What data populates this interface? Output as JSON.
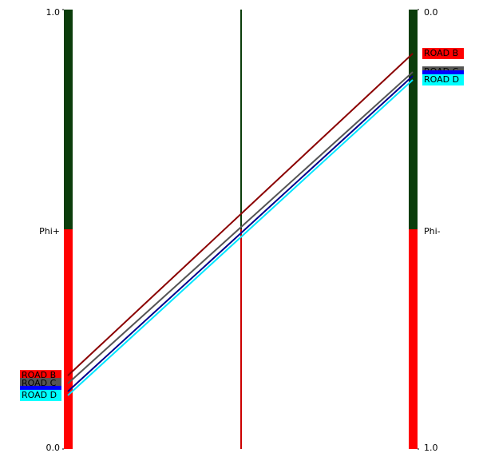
{
  "chart_data": {
    "type": "parallel",
    "left_axis": {
      "label": "Phi+",
      "ylim": [
        0,
        1
      ],
      "reversed": false,
      "ticks": [
        {
          "value": 0,
          "label": "0.0"
        },
        {
          "value": 1,
          "label": "1.0"
        }
      ]
    },
    "right_axis": {
      "label": "Phi-",
      "ylim": [
        0,
        1
      ],
      "reversed": true,
      "ticks": [
        {
          "value": 0,
          "label": "0.0"
        },
        {
          "value": 1,
          "label": "1.0"
        }
      ]
    },
    "series": [
      {
        "name": "ROAD B",
        "color": "#ff0000",
        "line_color": "#8b0000",
        "phi_plus": 0.167,
        "phi_minus": 0.1
      },
      {
        "name": "ROAD C",
        "color": "#555555",
        "line_color": "#555555",
        "phi_plus": 0.149,
        "phi_minus": 0.142
      },
      {
        "name": null,
        "color": "#0000ff",
        "line_color": "#00008b",
        "phi_plus": 0.131,
        "phi_minus": 0.151
      },
      {
        "name": "ROAD D",
        "color": "#00ffff",
        "line_color": "#00e5ff",
        "phi_plus": 0.122,
        "phi_minus": 0.16
      }
    ]
  }
}
